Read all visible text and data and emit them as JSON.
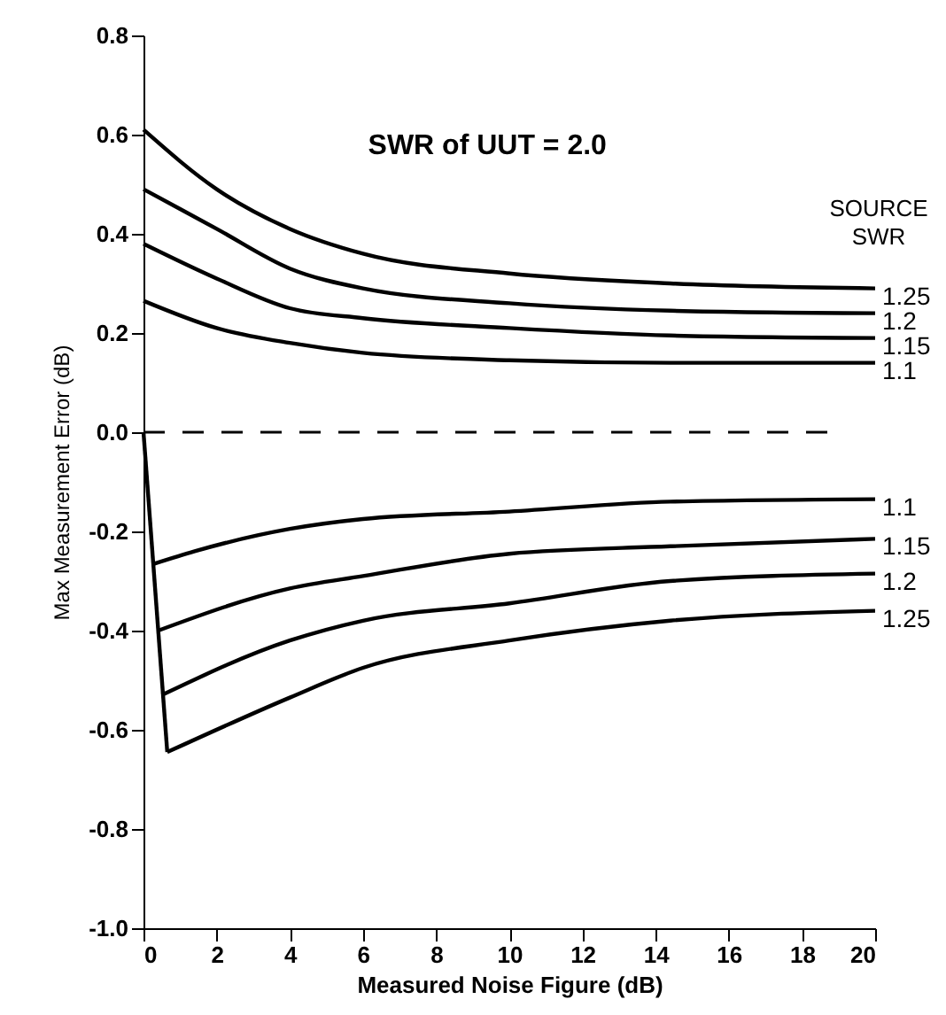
{
  "chart_data": {
    "type": "line",
    "annotations": [
      "SWR of UUT = 2.0"
    ],
    "xlabel": "Measured Noise Figure (dB)",
    "ylabel": "Max Measurement Error (dB)",
    "legend_title": "SOURCE SWR",
    "marker": "none",
    "line_style": "solid",
    "xlim": [
      0,
      20
    ],
    "xticks": [
      0,
      2,
      4,
      6,
      8,
      10,
      12,
      14,
      16,
      18,
      20
    ],
    "ylim": [
      -1.0,
      0.8
    ],
    "yticks": [
      {
        "value": -1.0,
        "label": "-1.0"
      },
      {
        "value": -0.8,
        "label": "-0.8"
      },
      {
        "value": -0.6,
        "label": "-0.6"
      },
      {
        "value": -0.4,
        "label": "-0.4"
      },
      {
        "value": -0.2,
        "label": "-0.2"
      },
      {
        "value": 0,
        "label": "0.0"
      },
      {
        "value": 0.2,
        "label": "0.2"
      },
      {
        "value": 0.4,
        "label": "0.4"
      },
      {
        "value": 0.6,
        "label": "0.6"
      },
      {
        "value": 0.8,
        "label": "0.8"
      }
    ],
    "ref_lines": [
      {
        "axis": "y",
        "value": 0,
        "line_style": "dashed",
        "color": "#000000"
      }
    ],
    "series": [
      {
        "name": "1.25",
        "color": "#000000",
        "x": [
          0,
          2,
          4,
          6,
          10,
          14.4,
          20
        ],
        "values": [
          0.61,
          0.49,
          0.41,
          0.36,
          0.32,
          0.3,
          0.29
        ]
      },
      {
        "name": "1.2",
        "color": "#000000",
        "x": [
          0,
          2,
          4,
          6,
          10,
          14.4,
          20
        ],
        "values": [
          0.49,
          0.41,
          0.33,
          0.29,
          0.26,
          0.245,
          0.24
        ]
      },
      {
        "name": "1.15",
        "color": "#000000",
        "x": [
          0,
          2,
          4,
          6,
          10,
          14.4,
          20
        ],
        "values": [
          0.38,
          0.31,
          0.25,
          0.23,
          0.21,
          0.195,
          0.19
        ]
      },
      {
        "name": "1.1",
        "color": "#000000",
        "x": [
          0,
          2,
          4,
          6,
          10,
          14.4,
          20
        ],
        "values": [
          0.265,
          0.21,
          0.18,
          0.16,
          0.145,
          0.14,
          0.14
        ]
      },
      {
        "name": "1.1",
        "color": "#000000",
        "x": [
          0.3,
          1.4,
          4,
          6,
          10,
          14.4,
          20
        ],
        "values": [
          -0.265,
          -0.24,
          -0.195,
          -0.175,
          -0.16,
          -0.14,
          -0.135
        ]
      },
      {
        "name": "1.15",
        "color": "#000000",
        "x": [
          0.4,
          4,
          6,
          10,
          14.4,
          20
        ],
        "values": [
          -0.4,
          -0.315,
          -0.29,
          -0.245,
          -0.23,
          -0.215
        ]
      },
      {
        "name": "1.2",
        "color": "#000000",
        "x": [
          0.5,
          4,
          6,
          10,
          14.4,
          20
        ],
        "values": [
          -0.53,
          -0.42,
          -0.38,
          -0.345,
          -0.3,
          -0.285
        ]
      },
      {
        "name": "1.25",
        "color": "#000000",
        "x": [
          0.65,
          4,
          6,
          10,
          14.4,
          20
        ],
        "values": [
          -0.645,
          -0.535,
          -0.475,
          -0.42,
          -0.38,
          -0.36
        ]
      },
      {
        "color": "#000000",
        "x": [
          0,
          0.65
        ],
        "values": [
          0,
          -0.645
        ]
      }
    ]
  }
}
